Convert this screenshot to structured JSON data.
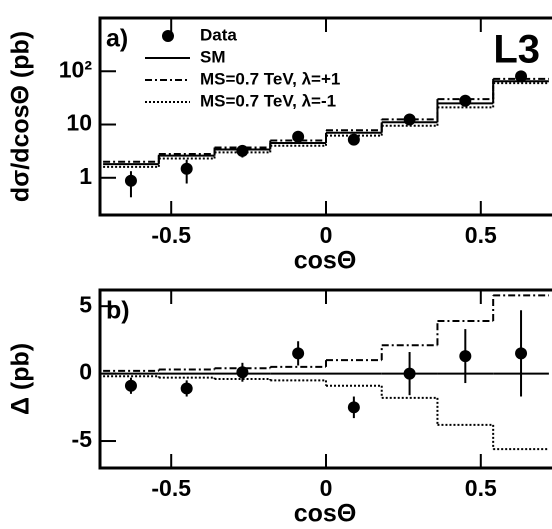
{
  "chart_data": [
    {
      "type": "combo",
      "panel_label": "a)",
      "experiment": "L3",
      "x_label": "cosΘ",
      "y_label": "dσ/dcosΘ (pb)",
      "xlim": [
        -0.73,
        0.73
      ],
      "xticks": [
        -0.5,
        0,
        0.5
      ],
      "log_y": true,
      "ylim": [
        0.2,
        1000
      ],
      "yticks": [
        1,
        10,
        {
          "value": 100,
          "label": "10²"
        }
      ],
      "bin_edges": [
        -0.72,
        -0.54,
        -0.36,
        -0.18,
        0,
        0.18,
        0.36,
        0.54,
        0.72
      ],
      "x": [
        -0.63,
        -0.45,
        -0.27,
        -0.09,
        0.09,
        0.27,
        0.45,
        0.63
      ],
      "series": [
        {
          "name": "Data",
          "kind": "points",
          "color": "#000000",
          "values": [
            0.88,
            1.48,
            3.2,
            5.9,
            5.2,
            12.4,
            28,
            80
          ],
          "errors": [
            0.45,
            0.7,
            0.8,
            1.2,
            1.1,
            1.8,
            2.6,
            4.5
          ]
        },
        {
          "name": "SM",
          "kind": "step",
          "dash": "solid",
          "color": "#000000",
          "values": [
            1.8,
            2.6,
            3.4,
            4.5,
            7.0,
            11,
            25,
            65
          ]
        },
        {
          "name": "MS=0.7 TeV, λ=+1",
          "kind": "step",
          "dash": "dashdot",
          "color": "#000000",
          "values": [
            2.0,
            2.8,
            3.7,
            5.0,
            7.8,
            12.5,
            30,
            72
          ]
        },
        {
          "name": "MS=0.7 TeV, λ=-1",
          "kind": "step",
          "dash": "dotted",
          "color": "#000000",
          "values": [
            1.6,
            2.3,
            3.0,
            4.0,
            6.2,
            9.5,
            21,
            60
          ]
        }
      ],
      "legend": true
    },
    {
      "type": "combo",
      "panel_label": "b)",
      "x_label": "cosΘ",
      "y_label": "Δ (pb)",
      "xlim": [
        -0.73,
        0.73
      ],
      "xticks": [
        -0.5,
        0,
        0.5
      ],
      "log_y": false,
      "ylim": [
        -7,
        6.2
      ],
      "yticks": [
        -5,
        0,
        5
      ],
      "bin_edges": [
        -0.72,
        -0.54,
        -0.36,
        -0.18,
        0,
        0.18,
        0.36,
        0.54,
        0.72
      ],
      "x": [
        -0.63,
        -0.45,
        -0.27,
        -0.09,
        0.09,
        0.27,
        0.45,
        0.63
      ],
      "series": [
        {
          "kind": "points",
          "color": "#000000",
          "values": [
            -0.9,
            -1.1,
            0.1,
            1.5,
            -2.5,
            0,
            1.3,
            1.5
          ],
          "errors": [
            0.6,
            0.6,
            0.7,
            0.9,
            0.8,
            1.6,
            2.0,
            3.2
          ]
        },
        {
          "kind": "step",
          "dash": "solid",
          "color": "#000000",
          "values": [
            0,
            0,
            0,
            0,
            0,
            0,
            0,
            0
          ]
        },
        {
          "kind": "step",
          "dash": "dashdot",
          "color": "#000000",
          "values": [
            0.2,
            0.3,
            0.4,
            0.5,
            1.0,
            2.1,
            3.9,
            5.8
          ]
        },
        {
          "kind": "step",
          "dash": "dotted",
          "color": "#000000",
          "values": [
            -0.2,
            -0.3,
            -0.4,
            -0.5,
            -0.9,
            -1.8,
            -3.8,
            -5.6
          ]
        }
      ],
      "legend": false
    }
  ]
}
